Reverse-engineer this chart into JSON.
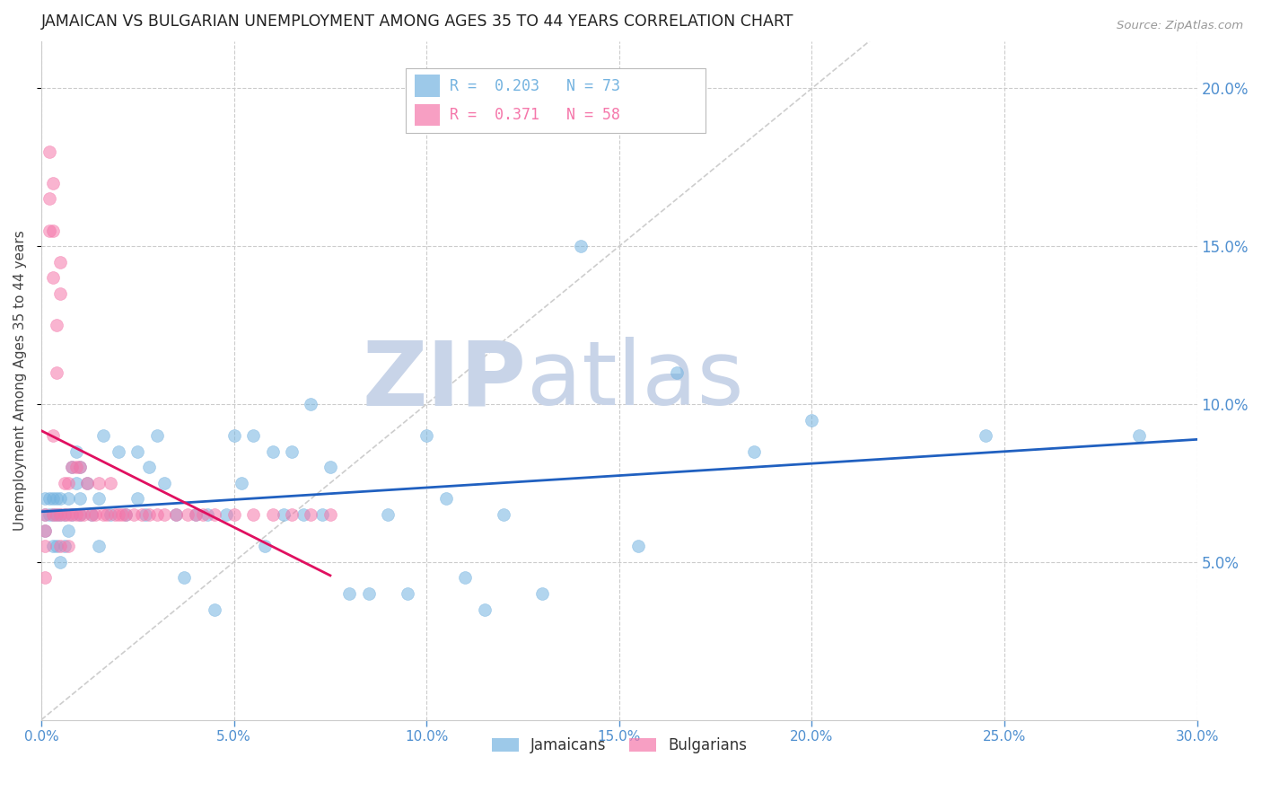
{
  "title": "JAMAICAN VS BULGARIAN UNEMPLOYMENT AMONG AGES 35 TO 44 YEARS CORRELATION CHART",
  "source": "Source: ZipAtlas.com",
  "ylabel": "Unemployment Among Ages 35 to 44 years",
  "xlim": [
    0,
    0.3
  ],
  "ylim": [
    0,
    0.215
  ],
  "x_ticks": [
    0.0,
    0.05,
    0.1,
    0.15,
    0.2,
    0.25,
    0.3
  ],
  "x_tick_labels": [
    "0.0%",
    "5.0%",
    "10.0%",
    "15.0%",
    "20.0%",
    "25.0%",
    "30.0%"
  ],
  "y_ticks_right": [
    0.05,
    0.1,
    0.15,
    0.2
  ],
  "y_tick_labels_right": [
    "5.0%",
    "10.0%",
    "15.0%",
    "20.0%"
  ],
  "jamaican_color": "#74b3e0",
  "bulgarian_color": "#f577aa",
  "jamaican_regression_color": "#2060c0",
  "bulgarian_regression_color": "#e01060",
  "diag_line_color": "#c8c8c8",
  "watermark_zip": "ZIP",
  "watermark_atlas": "atlas",
  "watermark_color": "#c8d4e8",
  "background_color": "#ffffff",
  "grid_color": "#cccccc",
  "title_color": "#222222",
  "axis_label_color": "#444444",
  "right_axis_color": "#5090d0",
  "bottom_axis_color": "#5090d0",
  "jamaicans_x": [
    0.001,
    0.001,
    0.001,
    0.002,
    0.002,
    0.003,
    0.003,
    0.003,
    0.004,
    0.004,
    0.004,
    0.005,
    0.005,
    0.005,
    0.006,
    0.006,
    0.007,
    0.007,
    0.008,
    0.008,
    0.009,
    0.009,
    0.01,
    0.01,
    0.01,
    0.012,
    0.013,
    0.015,
    0.015,
    0.016,
    0.018,
    0.02,
    0.022,
    0.025,
    0.025,
    0.027,
    0.028,
    0.03,
    0.032,
    0.035,
    0.037,
    0.04,
    0.043,
    0.045,
    0.048,
    0.05,
    0.052,
    0.055,
    0.058,
    0.06,
    0.063,
    0.065,
    0.068,
    0.07,
    0.073,
    0.075,
    0.08,
    0.085,
    0.09,
    0.095,
    0.1,
    0.105,
    0.11,
    0.115,
    0.12,
    0.13,
    0.14,
    0.155,
    0.165,
    0.185,
    0.2,
    0.245,
    0.285
  ],
  "jamaicans_y": [
    0.065,
    0.07,
    0.06,
    0.07,
    0.065,
    0.07,
    0.065,
    0.055,
    0.07,
    0.065,
    0.055,
    0.07,
    0.065,
    0.05,
    0.065,
    0.055,
    0.07,
    0.06,
    0.08,
    0.065,
    0.085,
    0.075,
    0.08,
    0.07,
    0.065,
    0.075,
    0.065,
    0.07,
    0.055,
    0.09,
    0.065,
    0.085,
    0.065,
    0.085,
    0.07,
    0.065,
    0.08,
    0.09,
    0.075,
    0.065,
    0.045,
    0.065,
    0.065,
    0.035,
    0.065,
    0.09,
    0.075,
    0.09,
    0.055,
    0.085,
    0.065,
    0.085,
    0.065,
    0.1,
    0.065,
    0.08,
    0.04,
    0.04,
    0.065,
    0.04,
    0.09,
    0.07,
    0.045,
    0.035,
    0.065,
    0.04,
    0.15,
    0.055,
    0.11,
    0.085,
    0.095,
    0.09,
    0.09
  ],
  "bulgarians_x": [
    0.001,
    0.001,
    0.001,
    0.001,
    0.002,
    0.002,
    0.002,
    0.003,
    0.003,
    0.003,
    0.003,
    0.003,
    0.004,
    0.004,
    0.004,
    0.005,
    0.005,
    0.005,
    0.005,
    0.006,
    0.006,
    0.007,
    0.007,
    0.007,
    0.008,
    0.008,
    0.009,
    0.009,
    0.01,
    0.01,
    0.011,
    0.012,
    0.013,
    0.014,
    0.015,
    0.016,
    0.017,
    0.018,
    0.019,
    0.02,
    0.021,
    0.022,
    0.024,
    0.026,
    0.028,
    0.03,
    0.032,
    0.035,
    0.038,
    0.04,
    0.042,
    0.045,
    0.05,
    0.055,
    0.06,
    0.065,
    0.07,
    0.075
  ],
  "bulgarians_y": [
    0.065,
    0.06,
    0.055,
    0.045,
    0.18,
    0.165,
    0.155,
    0.17,
    0.155,
    0.14,
    0.09,
    0.065,
    0.125,
    0.11,
    0.065,
    0.145,
    0.135,
    0.065,
    0.055,
    0.075,
    0.065,
    0.075,
    0.065,
    0.055,
    0.08,
    0.065,
    0.08,
    0.065,
    0.08,
    0.065,
    0.065,
    0.075,
    0.065,
    0.065,
    0.075,
    0.065,
    0.065,
    0.075,
    0.065,
    0.065,
    0.065,
    0.065,
    0.065,
    0.065,
    0.065,
    0.065,
    0.065,
    0.065,
    0.065,
    0.065,
    0.065,
    0.065,
    0.065,
    0.065,
    0.065,
    0.065,
    0.065,
    0.065
  ]
}
